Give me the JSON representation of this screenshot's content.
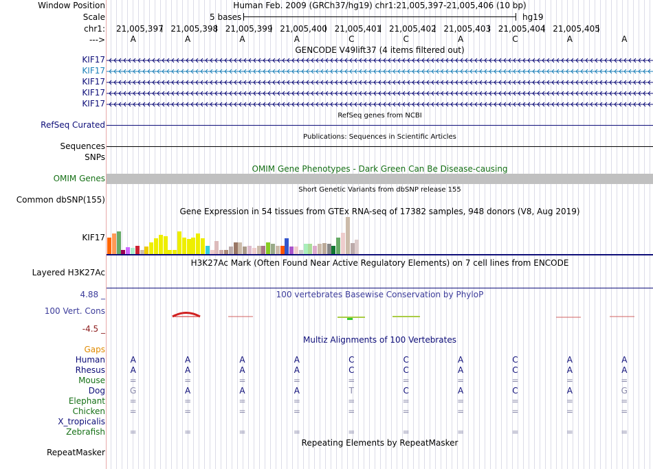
{
  "header": {
    "window_position_label": "Window Position",
    "scale_label": "Scale",
    "chrom_label": "chr1:",
    "strand_label": "--->",
    "assembly_text": "Human Feb. 2009 (GRCh37/hg19)   chr1:21,005,397-21,005,406 (10 bp)",
    "scale_text": "5 bases",
    "scale_db": "hg19",
    "coordinates": [
      "21,005,397",
      "21,005,398",
      "21,005,399",
      "21,005,400",
      "21,005,401",
      "21,005,402",
      "21,005,403",
      "21,005,404",
      "21,005,405"
    ],
    "bases": [
      "A",
      "A",
      "A",
      "A",
      "C",
      "C",
      "A",
      "C",
      "A",
      "A"
    ]
  },
  "tracks": {
    "gencode": {
      "title": "GENCODE V49lift37 (4 items filtered out)",
      "items": [
        "KIF17",
        "KIF17",
        "KIF17",
        "KIF17",
        "KIF17"
      ],
      "colors": [
        "#0c0c78",
        "#1a7fb8",
        "#0c0c78",
        "#0c0c78",
        "#0c0c78"
      ]
    },
    "refseq": {
      "title": "RefSeq genes from NCBI",
      "label": "RefSeq Curated"
    },
    "publications": {
      "title": "Publications: Sequences in Scientific Articles",
      "label": "Sequences"
    },
    "snps": {
      "label": "SNPs"
    },
    "omim": {
      "title": "OMIM Gene Phenotypes - Dark Green Can Be Disease-causing",
      "label": "OMIM Genes"
    },
    "dbsnp": {
      "title": "Short Genetic Variants from dbSNP release 155",
      "label": "Common dbSNP(155)"
    },
    "gtex": {
      "title": "Gene Expression in 54 tissues from GTEx RNA-seq of 17382 samples, 948 donors (V8, Aug 2019)",
      "label": "KIF17",
      "values": [
        0.45,
        0.55,
        0.62,
        0.12,
        0.18,
        0.16,
        0.22,
        0.12,
        0.2,
        0.32,
        0.42,
        0.52,
        0.48,
        0.12,
        0.12,
        0.62,
        0.45,
        0.4,
        0.45,
        0.55,
        0.42,
        0.22,
        0.12,
        0.35,
        0.12,
        0.12,
        0.2,
        0.32,
        0.32,
        0.2,
        0.22,
        0.16,
        0.22,
        0.22,
        0.32,
        0.28,
        0.22,
        0.22,
        0.42,
        0.2,
        0.2,
        0.12,
        0.28,
        0.28,
        0.22,
        0.28,
        0.3,
        0.28,
        0.22,
        0.45,
        0.58,
        1.0,
        0.3,
        0.38
      ],
      "colors": [
        "#ff6600",
        "#ff9955",
        "#66aa66",
        "#990055",
        "#cc66ff",
        "#aaeecc",
        "#cc2233",
        "#ccbbaa",
        "#eecc00",
        "#eeee00",
        "#eeee00",
        "#eeee00",
        "#eeee00",
        "#eeee00",
        "#eeee00",
        "#eeee00",
        "#eeee00",
        "#eeee00",
        "#eeee00",
        "#eeee00",
        "#eeee00",
        "#33ccdd",
        "#eecccc",
        "#ddbbbb",
        "#ccaaaa",
        "#aa8877",
        "#bbaaaa",
        "#997766",
        "#ccbbaa",
        "#aa9988",
        "#ddbbcc",
        "#eecccc",
        "#ccbbaa",
        "#aa7788",
        "#88cc22",
        "#99aa88",
        "#ccbbaa",
        "#ff5500",
        "#3355cc",
        "#aa55cc",
        "#eecccc",
        "#cccccc",
        "#aaeebb",
        "#aadd99",
        "#ddaacc",
        "#ccbbaa",
        "#bbaa99",
        "#888888",
        "#117733",
        "#66aa66",
        "#eecccc",
        "#ccbbaa",
        "#bbaaaa",
        "#ddcccc"
      ]
    },
    "h3k27ac": {
      "title": "H3K27Ac Mark (Often Found Near Active Regulatory Elements) on 7 cell lines from ENCODE",
      "label": "Layered H3K27Ac"
    },
    "cons": {
      "title": "100 vertebrates Basewise Conservation by PhyloP",
      "label": "100 Vert. Cons",
      "ymax": "4.88 _",
      "ymin": "-4.5 _"
    },
    "multiz": {
      "title": "Multiz Alignments of 100 Vertebrates",
      "gaps_label": "Gaps",
      "species": [
        {
          "name": "Human",
          "color": "#0c0c78",
          "row": [
            "A",
            "A",
            "A",
            "A",
            "C",
            "C",
            "A",
            "C",
            "A",
            "A"
          ]
        },
        {
          "name": "Rhesus",
          "color": "#0c0c78",
          "row": [
            "A",
            "A",
            "A",
            "A",
            "C",
            "C",
            "A",
            "C",
            "A",
            "A"
          ]
        },
        {
          "name": "Mouse",
          "color": "#167016",
          "row": [
            "=",
            "=",
            "=",
            "=",
            "=",
            "=",
            "=",
            "=",
            "=",
            "="
          ]
        },
        {
          "name": "Dog",
          "color": "#0c0c78",
          "row": [
            "G",
            "A",
            "A",
            "A",
            "T",
            "C",
            "A",
            "C",
            "A",
            "G"
          ]
        },
        {
          "name": "Elephant",
          "color": "#167016",
          "row": [
            "=",
            "=",
            "=",
            "=",
            "=",
            "=",
            "=",
            "=",
            "=",
            "="
          ]
        },
        {
          "name": "Chicken",
          "color": "#167016",
          "row": [
            "=",
            "=",
            "=",
            "=",
            "=",
            "=",
            "=",
            "=",
            "=",
            "="
          ]
        },
        {
          "name": "X_tropicalis",
          "color": "#0c0c78",
          "row": [
            "",
            "",
            "",
            "",
            "",
            "",
            "",
            "",
            "",
            ""
          ]
        },
        {
          "name": "Zebrafish",
          "color": "#167016",
          "row": [
            "=",
            "=",
            "=",
            "=",
            "=",
            "=",
            "=",
            "=",
            "=",
            "="
          ]
        }
      ]
    },
    "repeatmasker": {
      "title": "Repeating Elements by RepeatMasker",
      "label": "RepeatMasker"
    }
  },
  "colors": {
    "gencode_navy": "#0c0c78",
    "omim_green": "#167016",
    "cons_blue": "#3b3b9a",
    "cons_red": "#8b1a1a",
    "gaps_orange": "#e08a00"
  }
}
